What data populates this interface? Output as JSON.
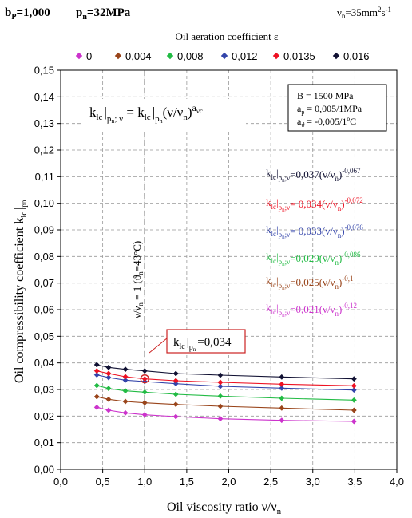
{
  "header": {
    "b_label": "b",
    "b_sub": "P",
    "b_value": "=1,000",
    "p_label": "p",
    "p_sub": "n",
    "p_value": "=32MPa",
    "nu_label": "ν",
    "nu_sub": "n",
    "nu_value": "=35mm",
    "nu_unit_sup1": "2",
    "nu_unit_mid": "s",
    "nu_unit_sup2": "-1"
  },
  "properties_box": {
    "line1": "B = 1500 MPa",
    "line2_a": "a",
    "line2_sub": "p",
    "line2_b": " = 0,005/1MPa",
    "line3_a": "a",
    "line3_sub": "ϑ",
    "line3_b": " = -0,005/1ºC"
  },
  "general_formula": {
    "k": "k",
    "k_sub": "lc",
    "bar1_sub": "p",
    "bar1_subsub": "n",
    "bar1_tail": "; ν",
    "eq": " = k",
    "k2_sub": "lc",
    "bar2_sub": "p",
    "bar2_subsub": "n",
    "tail": "(ν/ν",
    "tail_sub": "n",
    "tail_close": ")",
    "exp": "a",
    "exp_sub": "νc"
  },
  "reference_line_label": {
    "text_a": "ν/ν",
    "text_a_sub": "n",
    "text_b": " = 1  (ϑ",
    "text_b_sub": "n",
    "text_c": "=43°C)"
  },
  "callout": {
    "k": "k",
    "k_sub": "lc",
    "p": "p",
    "p_sub": "n",
    "value": "=0,034"
  },
  "colors": {
    "s0": "#cc33cc",
    "s1": "#99441a",
    "s2": "#22bb44",
    "s3": "#3344aa",
    "s4": "#ee1122",
    "s5": "#111133",
    "callout_border": "#cc2222",
    "grid": "#999999",
    "axis": "#000000"
  },
  "chart_data": {
    "type": "line",
    "title": "",
    "xlabel": "Oil viscosity ratio ν/νn",
    "xlabel_main": "Oil viscosity ratio ν/ν",
    "xlabel_sub": "n",
    "ylabel_main": "Oil compressibility coefficient k",
    "ylabel_sub": "lc",
    "ylabel_subsub": "pn",
    "xlim": [
      0.0,
      4.0
    ],
    "ylim": [
      0.0,
      0.15
    ],
    "x_ticks": [
      "0,0",
      "0,5",
      "1,0",
      "1,5",
      "2,0",
      "2,5",
      "3,0",
      "3,5",
      "4,0"
    ],
    "y_ticks": [
      "0,00",
      "0,01",
      "0,02",
      "0,03",
      "0,04",
      "0,05",
      "0,06",
      "0,07",
      "0,08",
      "0,09",
      "0,10",
      "0,11",
      "0,12",
      "0,13",
      "0,14",
      "0,15"
    ],
    "grid": true,
    "legend_title": "Oil aeration coefficient ε",
    "legend_position": "top",
    "x": [
      0.43,
      0.57,
      0.77,
      1.0,
      1.37,
      1.9,
      2.63,
      3.49
    ],
    "series": [
      {
        "name": "0",
        "color_key": "s0",
        "marker": "diamond",
        "values": [
          0.0233,
          0.0222,
          0.0212,
          0.0205,
          0.0198,
          0.019,
          0.0184,
          0.018
        ],
        "formula": {
          "coef": "=0,021(ν/ν",
          "exp": "-0,12"
        }
      },
      {
        "name": "0,004",
        "color_key": "s1",
        "marker": "diamond",
        "values": [
          0.0273,
          0.0263,
          0.0255,
          0.025,
          0.0244,
          0.0237,
          0.023,
          0.0222
        ],
        "formula": {
          "coef": "=0,025(ν/ν",
          "exp": "-0,1"
        }
      },
      {
        "name": "0,008",
        "color_key": "s2",
        "marker": "diamond",
        "values": [
          0.0315,
          0.0304,
          0.0295,
          0.029,
          0.0282,
          0.0275,
          0.0267,
          0.026
        ],
        "formula": {
          "coef": "=0,029(ν/ν",
          "exp": "-0,086"
        }
      },
      {
        "name": "0,012",
        "color_key": "s3",
        "marker": "diamond",
        "values": [
          0.0355,
          0.0345,
          0.0335,
          0.033,
          0.0322,
          0.0312,
          0.0305,
          0.0298
        ],
        "formula": {
          "coef": "= 0,033(ν/ν",
          "exp": "-0,076"
        }
      },
      {
        "name": "0,0135",
        "color_key": "s4",
        "marker": "diamond",
        "values": [
          0.037,
          0.036,
          0.0348,
          0.034,
          0.0333,
          0.0327,
          0.032,
          0.0314
        ],
        "formula": {
          "coef": "= 0,034(ν/ν",
          "exp": "-0,072"
        }
      },
      {
        "name": "0,016",
        "color_key": "s5",
        "marker": "diamond",
        "values": [
          0.0393,
          0.0383,
          0.0376,
          0.037,
          0.036,
          0.0354,
          0.0347,
          0.034
        ],
        "formula": {
          "coef": "=0,037(ν/ν",
          "exp": "-0,067"
        }
      }
    ],
    "formula_order": [
      5,
      4,
      3,
      2,
      1,
      0
    ],
    "reference_x": 1.0,
    "callout_point": {
      "x": 1.0,
      "y": 0.034
    }
  }
}
